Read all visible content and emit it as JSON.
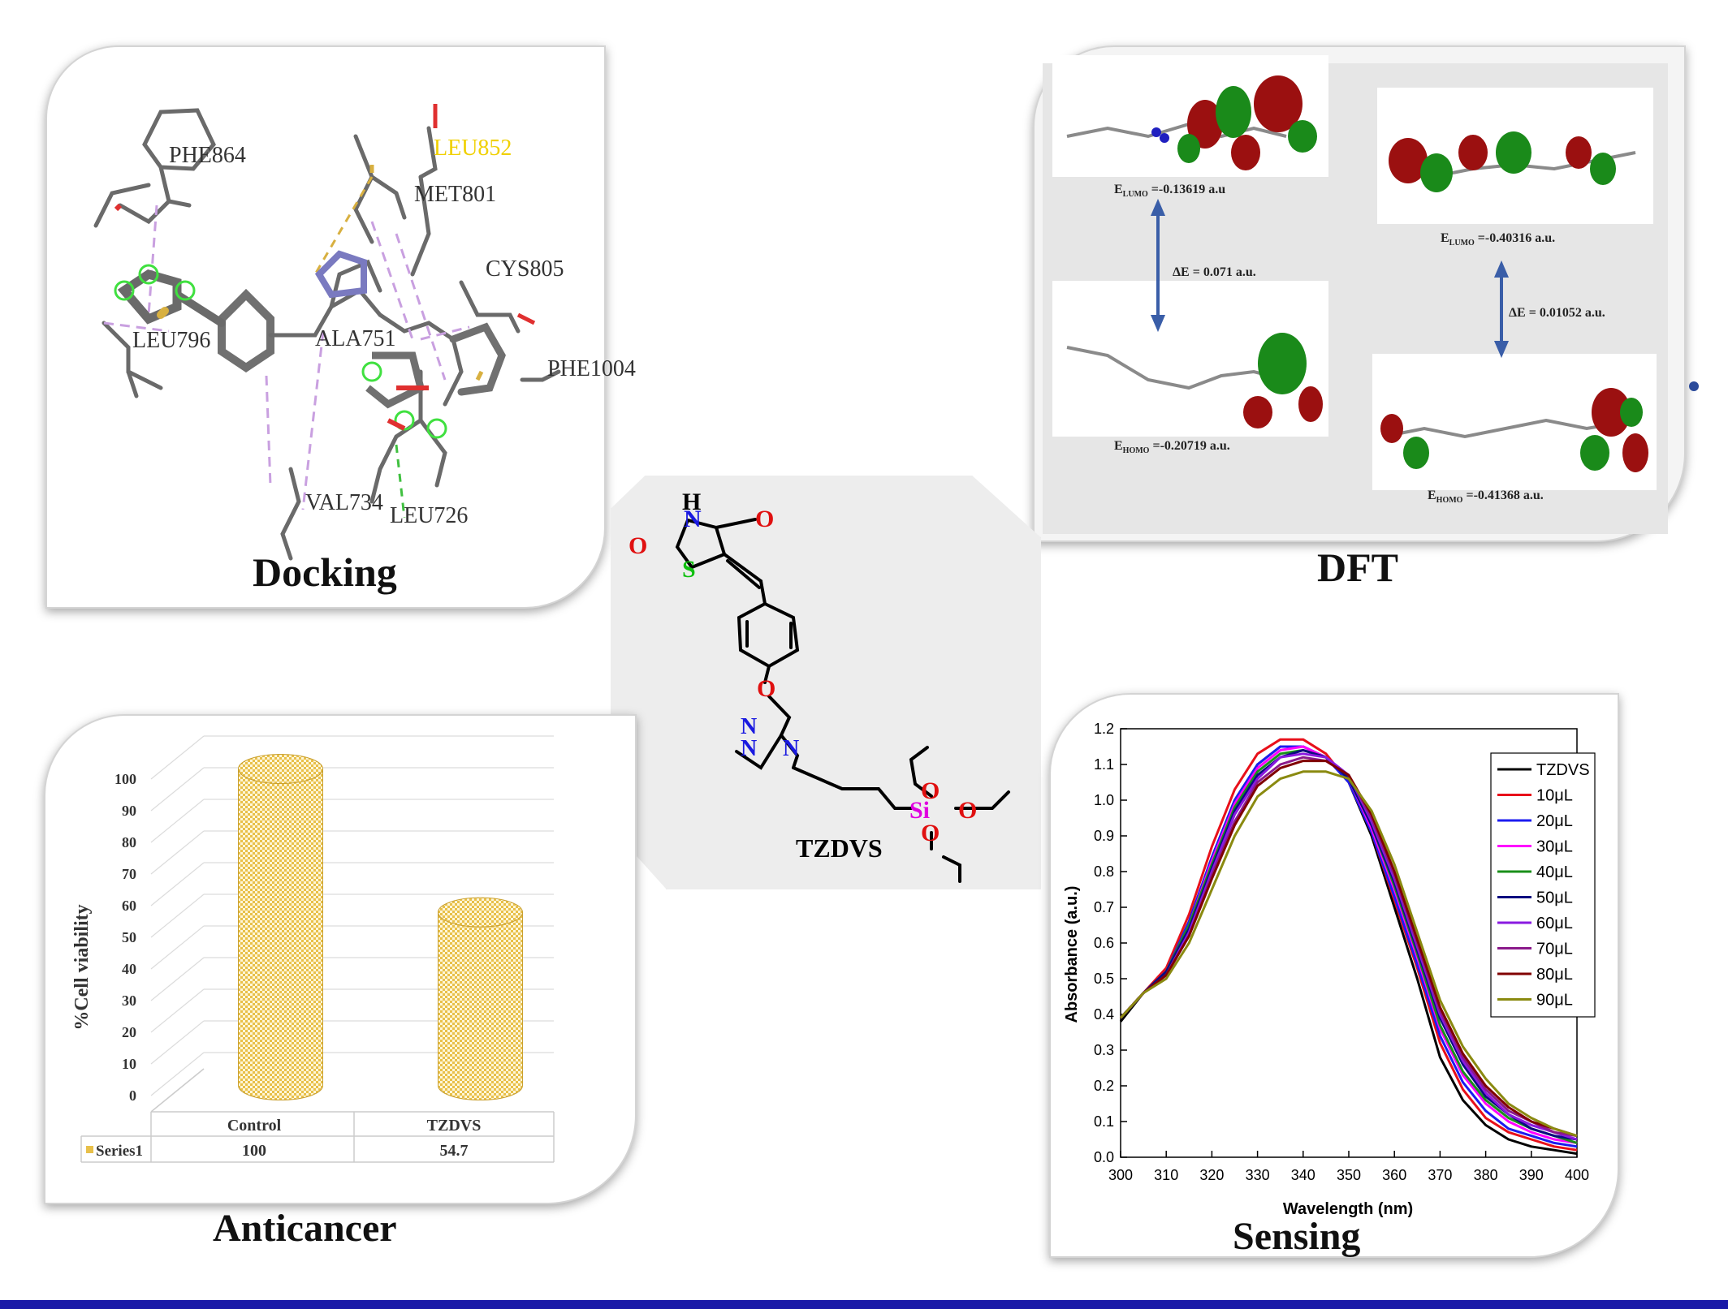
{
  "docking": {
    "title": "Docking",
    "residues": [
      "PHE864",
      "LEU852",
      "MET801",
      "CYS805",
      "LEU796",
      "ALA751",
      "PHE1004",
      "VAL734",
      "LEU726"
    ]
  },
  "dft": {
    "title": "DFT",
    "left_lumo": "-0.13619 a.u",
    "left_gap": "ΔE = 0.071 a.u.",
    "left_homo": "-0.20719 a.u.",
    "right_lumo": "-0.40316 a.u.",
    "right_gap": "ΔE = 0.01052 a.u.",
    "right_homo": "-0.41368 a.u."
  },
  "structure": {
    "name": "TZDVS",
    "atoms": [
      "H",
      "N",
      "O",
      "O",
      "S",
      "O",
      "N",
      "N",
      "N",
      "O",
      "O",
      "Si",
      "O"
    ]
  },
  "anticancer": {
    "title": "Anticancer",
    "chart_data": {
      "type": "bar",
      "categories": [
        "Control",
        "TZDVS"
      ],
      "series": [
        {
          "name": "Series1",
          "values": [
            100,
            54.7
          ]
        }
      ],
      "ylabel": "%Cell viability",
      "ylim": [
        0,
        100
      ],
      "yticks": [
        0,
        10,
        20,
        30,
        40,
        50,
        60,
        70,
        80,
        90,
        100
      ],
      "table_values": [
        "100",
        "54.7"
      ],
      "bar_color": "#e8c04a"
    }
  },
  "sensing": {
    "title": "Sensing",
    "chart_data": {
      "type": "line",
      "xlabel": "Wavelength (nm)",
      "ylabel": "Absorbance (a.u.)",
      "xlim": [
        300,
        400
      ],
      "ylim": [
        0.0,
        1.2
      ],
      "xticks": [
        300,
        310,
        320,
        330,
        340,
        350,
        360,
        370,
        380,
        390,
        400
      ],
      "yticks": [
        "0.0",
        "0.1",
        "0.2",
        "0.3",
        "0.4",
        "0.5",
        "0.6",
        "0.7",
        "0.8",
        "0.9",
        "1.0",
        "1.1",
        "1.2"
      ],
      "legend_position": "top-right",
      "x": [
        300,
        305,
        310,
        315,
        320,
        325,
        330,
        335,
        340,
        345,
        350,
        355,
        360,
        365,
        370,
        375,
        380,
        385,
        390,
        395,
        400
      ],
      "series": [
        {
          "name": "TZDVS",
          "color": "#000000",
          "values": [
            0.38,
            0.46,
            0.52,
            0.66,
            0.84,
            1.0,
            1.1,
            1.15,
            1.15,
            1.12,
            1.05,
            0.9,
            0.7,
            0.5,
            0.28,
            0.16,
            0.09,
            0.05,
            0.03,
            0.02,
            0.01
          ]
        },
        {
          "name": "10μL",
          "color": "#e8101a",
          "values": [
            0.39,
            0.46,
            0.53,
            0.68,
            0.87,
            1.03,
            1.13,
            1.17,
            1.17,
            1.13,
            1.05,
            0.91,
            0.72,
            0.53,
            0.32,
            0.19,
            0.11,
            0.07,
            0.05,
            0.03,
            0.02
          ]
        },
        {
          "name": "20μL",
          "color": "#1c1cf0",
          "values": [
            0.39,
            0.46,
            0.52,
            0.66,
            0.84,
            1.0,
            1.1,
            1.15,
            1.15,
            1.12,
            1.05,
            0.91,
            0.73,
            0.54,
            0.34,
            0.21,
            0.13,
            0.08,
            0.06,
            0.04,
            0.03
          ]
        },
        {
          "name": "30μL",
          "color": "#ff00ff",
          "values": [
            0.39,
            0.46,
            0.52,
            0.65,
            0.83,
            0.99,
            1.09,
            1.14,
            1.15,
            1.12,
            1.06,
            0.92,
            0.75,
            0.56,
            0.36,
            0.23,
            0.15,
            0.1,
            0.07,
            0.05,
            0.04
          ]
        },
        {
          "name": "40μL",
          "color": "#1a8f1a",
          "values": [
            0.39,
            0.46,
            0.52,
            0.65,
            0.82,
            0.98,
            1.08,
            1.13,
            1.14,
            1.12,
            1.06,
            0.93,
            0.76,
            0.57,
            0.37,
            0.24,
            0.16,
            0.11,
            0.08,
            0.06,
            0.04
          ]
        },
        {
          "name": "50μL",
          "color": "#0b0b80",
          "values": [
            0.39,
            0.46,
            0.52,
            0.64,
            0.81,
            0.97,
            1.07,
            1.12,
            1.14,
            1.12,
            1.06,
            0.93,
            0.77,
            0.58,
            0.39,
            0.26,
            0.17,
            0.12,
            0.08,
            0.06,
            0.05
          ]
        },
        {
          "name": "60μL",
          "color": "#8a1ae0",
          "values": [
            0.39,
            0.46,
            0.51,
            0.63,
            0.8,
            0.96,
            1.06,
            1.12,
            1.13,
            1.12,
            1.07,
            0.94,
            0.78,
            0.59,
            0.4,
            0.27,
            0.18,
            0.12,
            0.09,
            0.07,
            0.05
          ]
        },
        {
          "name": "70μL",
          "color": "#8a1a8a",
          "values": [
            0.39,
            0.46,
            0.51,
            0.62,
            0.79,
            0.94,
            1.05,
            1.1,
            1.12,
            1.11,
            1.07,
            0.95,
            0.79,
            0.6,
            0.41,
            0.28,
            0.19,
            0.13,
            0.1,
            0.07,
            0.06
          ]
        },
        {
          "name": "80μL",
          "color": "#800000",
          "values": [
            0.39,
            0.46,
            0.51,
            0.62,
            0.78,
            0.93,
            1.04,
            1.09,
            1.11,
            1.11,
            1.07,
            0.96,
            0.8,
            0.61,
            0.42,
            0.29,
            0.2,
            0.14,
            0.1,
            0.08,
            0.06
          ]
        },
        {
          "name": "90μL",
          "color": "#8a8a10",
          "values": [
            0.39,
            0.46,
            0.5,
            0.6,
            0.75,
            0.9,
            1.01,
            1.06,
            1.08,
            1.08,
            1.06,
            0.97,
            0.82,
            0.63,
            0.44,
            0.31,
            0.22,
            0.15,
            0.11,
            0.08,
            0.06
          ]
        }
      ]
    }
  }
}
